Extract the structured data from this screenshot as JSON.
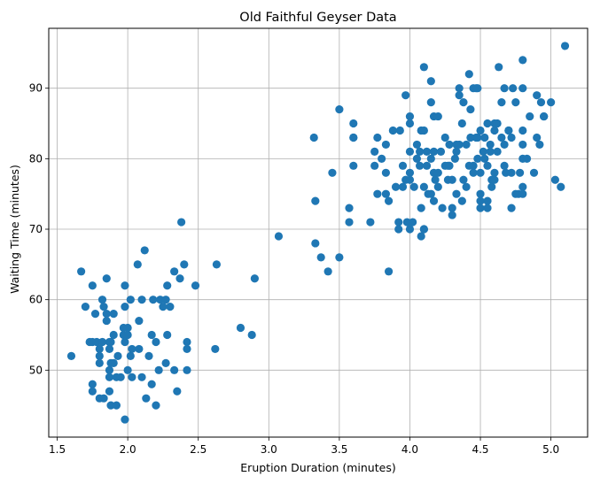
{
  "chart_data": {
    "type": "scatter",
    "title": "Old Faithful Geyser Data",
    "xlabel": "Eruption Duration (minutes)",
    "ylabel": "Waiting Time (minutes)",
    "xlim": [
      1.44,
      5.26
    ],
    "ylim": [
      40.5,
      98.5
    ],
    "xticks": [
      1.5,
      2.0,
      2.5,
      3.0,
      3.5,
      4.0,
      4.5,
      5.0
    ],
    "xtick_labels": [
      "1.5",
      "2.0",
      "2.5",
      "3.0",
      "3.5",
      "4.0",
      "4.5",
      "5.0"
    ],
    "yticks": [
      50,
      60,
      70,
      80,
      90
    ],
    "ytick_labels": [
      "50",
      "60",
      "70",
      "80",
      "90"
    ],
    "grid": true,
    "point_color": "#1f77b4",
    "points": [
      [
        1.6,
        52
      ],
      [
        1.67,
        64
      ],
      [
        1.7,
        59
      ],
      [
        1.73,
        54
      ],
      [
        1.75,
        62
      ],
      [
        1.75,
        54
      ],
      [
        1.75,
        48
      ],
      [
        1.75,
        47
      ],
      [
        1.77,
        58
      ],
      [
        1.78,
        54
      ],
      [
        1.8,
        52
      ],
      [
        1.8,
        46
      ],
      [
        1.8,
        53
      ],
      [
        1.8,
        51
      ],
      [
        1.82,
        54
      ],
      [
        1.82,
        60
      ],
      [
        1.83,
        59
      ],
      [
        1.83,
        46
      ],
      [
        1.85,
        63
      ],
      [
        1.85,
        57
      ],
      [
        1.85,
        58
      ],
      [
        1.87,
        54
      ],
      [
        1.87,
        53
      ],
      [
        1.87,
        47
      ],
      [
        1.87,
        50
      ],
      [
        1.87,
        49
      ],
      [
        1.88,
        45
      ],
      [
        1.88,
        51
      ],
      [
        1.88,
        54
      ],
      [
        1.9,
        58
      ],
      [
        1.9,
        55
      ],
      [
        1.9,
        51
      ],
      [
        1.92,
        45
      ],
      [
        1.92,
        49
      ],
      [
        1.93,
        52
      ],
      [
        1.95,
        49
      ],
      [
        1.97,
        56
      ],
      [
        1.97,
        55
      ],
      [
        1.98,
        62
      ],
      [
        1.98,
        59
      ],
      [
        1.98,
        54
      ],
      [
        1.98,
        43
      ],
      [
        2.0,
        56
      ],
      [
        2.0,
        50
      ],
      [
        2.0,
        55
      ],
      [
        2.02,
        60
      ],
      [
        2.02,
        52
      ],
      [
        2.03,
        49
      ],
      [
        2.03,
        53
      ],
      [
        2.07,
        65
      ],
      [
        2.08,
        57
      ],
      [
        2.08,
        53
      ],
      [
        2.1,
        49
      ],
      [
        2.1,
        60
      ],
      [
        2.12,
        67
      ],
      [
        2.13,
        46
      ],
      [
        2.15,
        52
      ],
      [
        2.17,
        48
      ],
      [
        2.17,
        55
      ],
      [
        2.18,
        60
      ],
      [
        2.2,
        54
      ],
      [
        2.2,
        45
      ],
      [
        2.22,
        50
      ],
      [
        2.23,
        60
      ],
      [
        2.25,
        59
      ],
      [
        2.27,
        51
      ],
      [
        2.27,
        60
      ],
      [
        2.28,
        55
      ],
      [
        2.28,
        62
      ],
      [
        2.3,
        59
      ],
      [
        2.33,
        50
      ],
      [
        2.33,
        64
      ],
      [
        2.35,
        47
      ],
      [
        2.37,
        63
      ],
      [
        2.38,
        71
      ],
      [
        2.4,
        65
      ],
      [
        2.42,
        50
      ],
      [
        2.42,
        54
      ],
      [
        2.42,
        53
      ],
      [
        2.48,
        62
      ],
      [
        2.62,
        53
      ],
      [
        2.63,
        65
      ],
      [
        2.8,
        56
      ],
      [
        2.88,
        55
      ],
      [
        2.9,
        63
      ],
      [
        3.07,
        69
      ],
      [
        3.32,
        83
      ],
      [
        3.33,
        74
      ],
      [
        3.33,
        68
      ],
      [
        3.37,
        66
      ],
      [
        3.42,
        64
      ],
      [
        3.45,
        78
      ],
      [
        3.5,
        87
      ],
      [
        3.5,
        66
      ],
      [
        3.57,
        73
      ],
      [
        3.57,
        71
      ],
      [
        3.6,
        85
      ],
      [
        3.6,
        83
      ],
      [
        3.6,
        83
      ],
      [
        3.6,
        79
      ],
      [
        3.72,
        71
      ],
      [
        3.75,
        81
      ],
      [
        3.75,
        79
      ],
      [
        3.77,
        83
      ],
      [
        3.77,
        75
      ],
      [
        3.8,
        80
      ],
      [
        3.83,
        82
      ],
      [
        3.83,
        75
      ],
      [
        3.83,
        78
      ],
      [
        3.85,
        74
      ],
      [
        3.85,
        64
      ],
      [
        3.88,
        84
      ],
      [
        3.9,
        76
      ],
      [
        3.92,
        71
      ],
      [
        3.92,
        70
      ],
      [
        3.93,
        84
      ],
      [
        3.95,
        76
      ],
      [
        3.95,
        79
      ],
      [
        3.97,
        89
      ],
      [
        3.97,
        77
      ],
      [
        3.98,
        71
      ],
      [
        4.0,
        86
      ],
      [
        4.0,
        85
      ],
      [
        4.0,
        81
      ],
      [
        4.0,
        78
      ],
      [
        4.0,
        77
      ],
      [
        4.0,
        70
      ],
      [
        4.02,
        71
      ],
      [
        4.03,
        76
      ],
      [
        4.05,
        80
      ],
      [
        4.05,
        82
      ],
      [
        4.07,
        79
      ],
      [
        4.07,
        81
      ],
      [
        4.08,
        73
      ],
      [
        4.08,
        69
      ],
      [
        4.08,
        84
      ],
      [
        4.1,
        93
      ],
      [
        4.1,
        70
      ],
      [
        4.1,
        84
      ],
      [
        4.1,
        76
      ],
      [
        4.1,
        70
      ],
      [
        4.12,
        81
      ],
      [
        4.12,
        79
      ],
      [
        4.13,
        75
      ],
      [
        4.15,
        91
      ],
      [
        4.15,
        88
      ],
      [
        4.15,
        80
      ],
      [
        4.15,
        75
      ],
      [
        4.17,
        86
      ],
      [
        4.17,
        81
      ],
      [
        4.17,
        78
      ],
      [
        4.17,
        74
      ],
      [
        4.18,
        77
      ],
      [
        4.2,
        86
      ],
      [
        4.2,
        78
      ],
      [
        4.2,
        76
      ],
      [
        4.22,
        81
      ],
      [
        4.23,
        73
      ],
      [
        4.25,
        79
      ],
      [
        4.25,
        83
      ],
      [
        4.27,
        79
      ],
      [
        4.27,
        77
      ],
      [
        4.28,
        82
      ],
      [
        4.28,
        79
      ],
      [
        4.3,
        77
      ],
      [
        4.3,
        72
      ],
      [
        4.3,
        73
      ],
      [
        4.32,
        80
      ],
      [
        4.33,
        75
      ],
      [
        4.33,
        81
      ],
      [
        4.33,
        82
      ],
      [
        4.35,
        89
      ],
      [
        4.35,
        90
      ],
      [
        4.35,
        82
      ],
      [
        4.37,
        85
      ],
      [
        4.37,
        74
      ],
      [
        4.38,
        88
      ],
      [
        4.38,
        77
      ],
      [
        4.4,
        76
      ],
      [
        4.4,
        82
      ],
      [
        4.42,
        92
      ],
      [
        4.42,
        79
      ],
      [
        4.43,
        87
      ],
      [
        4.43,
        83
      ],
      [
        4.45,
        79
      ],
      [
        4.45,
        90
      ],
      [
        4.45,
        78
      ],
      [
        4.47,
        90
      ],
      [
        4.47,
        83
      ],
      [
        4.48,
        90
      ],
      [
        4.48,
        83
      ],
      [
        4.48,
        80
      ],
      [
        4.5,
        75
      ],
      [
        4.5,
        74
      ],
      [
        4.5,
        73
      ],
      [
        4.5,
        84
      ],
      [
        4.5,
        78
      ],
      [
        4.52,
        81
      ],
      [
        4.53,
        83
      ],
      [
        4.53,
        80
      ],
      [
        4.55,
        85
      ],
      [
        4.55,
        79
      ],
      [
        4.55,
        74
      ],
      [
        4.55,
        73
      ],
      [
        4.57,
        82
      ],
      [
        4.57,
        81
      ],
      [
        4.58,
        77
      ],
      [
        4.58,
        76
      ],
      [
        4.6,
        84
      ],
      [
        4.6,
        85
      ],
      [
        4.6,
        78
      ],
      [
        4.6,
        77
      ],
      [
        4.62,
        85
      ],
      [
        4.62,
        81
      ],
      [
        4.63,
        93
      ],
      [
        4.65,
        88
      ],
      [
        4.65,
        83
      ],
      [
        4.67,
        82
      ],
      [
        4.67,
        90
      ],
      [
        4.67,
        79
      ],
      [
        4.68,
        78
      ],
      [
        4.7,
        84
      ],
      [
        4.7,
        84
      ],
      [
        4.72,
        83
      ],
      [
        4.72,
        78
      ],
      [
        4.72,
        73
      ],
      [
        4.73,
        90
      ],
      [
        4.75,
        88
      ],
      [
        4.75,
        75
      ],
      [
        4.77,
        75
      ],
      [
        4.78,
        78
      ],
      [
        4.8,
        90
      ],
      [
        4.8,
        94
      ],
      [
        4.8,
        84
      ],
      [
        4.8,
        82
      ],
      [
        4.8,
        80
      ],
      [
        4.8,
        76
      ],
      [
        4.8,
        75
      ],
      [
        4.83,
        80
      ],
      [
        4.85,
        86
      ],
      [
        4.88,
        78
      ],
      [
        4.9,
        89
      ],
      [
        4.9,
        83
      ],
      [
        4.92,
        82
      ],
      [
        4.93,
        88
      ],
      [
        4.95,
        86
      ],
      [
        4.95,
        86
      ],
      [
        5.0,
        88
      ],
      [
        5.03,
        77
      ],
      [
        5.07,
        76
      ],
      [
        5.1,
        96
      ]
    ]
  }
}
